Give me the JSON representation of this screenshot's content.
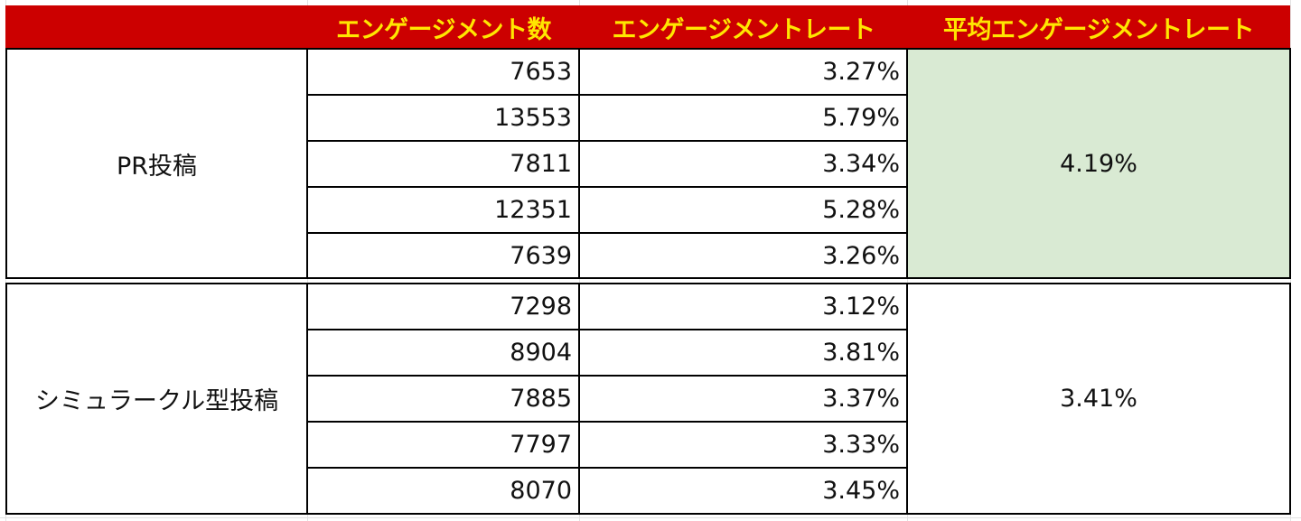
{
  "colors": {
    "header_bg": "#cc0000",
    "header_text": "#ffe600",
    "highlight_bg": "#d9ead3"
  },
  "headers": [
    "",
    "エンゲージメント数",
    "エンゲージメントレート",
    "平均エンゲージメントレート"
  ],
  "groups": [
    {
      "name": "PR投稿",
      "average": "4.19%",
      "rows": [
        {
          "count": "7653",
          "rate": "3.27%"
        },
        {
          "count": "13553",
          "rate": "5.79%"
        },
        {
          "count": "7811",
          "rate": "3.34%"
        },
        {
          "count": "12351",
          "rate": "5.28%"
        },
        {
          "count": "7639",
          "rate": "3.26%"
        }
      ]
    },
    {
      "name": "シミュラークル型投稿",
      "average": "3.41%",
      "rows": [
        {
          "count": "7298",
          "rate": "3.12%"
        },
        {
          "count": "8904",
          "rate": "3.81%"
        },
        {
          "count": "7885",
          "rate": "3.37%"
        },
        {
          "count": "7797",
          "rate": "3.33%"
        },
        {
          "count": "8070",
          "rate": "3.45%"
        }
      ]
    }
  ]
}
